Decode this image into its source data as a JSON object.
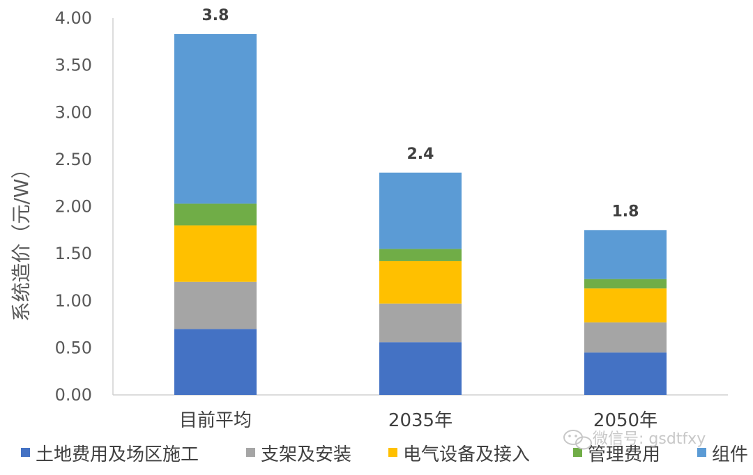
{
  "chart_data": {
    "type": "bar",
    "stacked": true,
    "ylabel": "系统造价（元/W）",
    "ylim": [
      0,
      4.0
    ],
    "yticks": [
      "0.00",
      "0.50",
      "1.00",
      "1.50",
      "2.00",
      "2.50",
      "3.00",
      "3.50",
      "4.00"
    ],
    "categories": [
      "目前平均",
      "2035年",
      "2050年"
    ],
    "totals": [
      "3.8",
      "2.4",
      "1.8"
    ],
    "series": [
      {
        "name": "土地费用及场区施工",
        "color": "#4472c4",
        "values": [
          0.7,
          0.56,
          0.45
        ]
      },
      {
        "name": "支架及安装",
        "color": "#a5a5a5",
        "values": [
          0.5,
          0.41,
          0.32
        ]
      },
      {
        "name": "电气设备及接入",
        "color": "#ffc000",
        "values": [
          0.6,
          0.45,
          0.36
        ]
      },
      {
        "name": "管理费用",
        "color": "#70ad47",
        "values": [
          0.23,
          0.13,
          0.1
        ]
      },
      {
        "name": "组件",
        "color": "#5b9bd5",
        "values": [
          1.8,
          0.81,
          0.52
        ]
      }
    ],
    "grid": false,
    "legend_position": "bottom"
  },
  "watermark": {
    "icon": "wechat-icon",
    "text": "微信号: gsdtfxy"
  }
}
